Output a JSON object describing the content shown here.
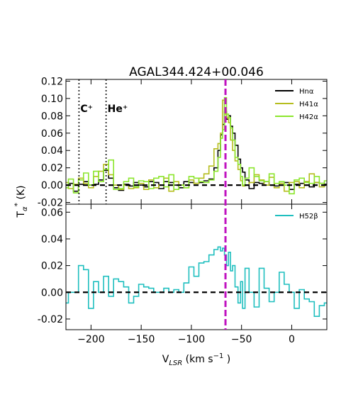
{
  "chart_data": [
    {
      "type": "line",
      "panel": "top",
      "title": "AGAL344.424+00.046",
      "ylabel": "T_a* (K)",
      "xlim": [
        -225,
        35
      ],
      "ylim": [
        -0.022,
        0.122
      ],
      "yticks": [
        "-0.02",
        "0.00",
        "0.02",
        "0.04",
        "0.06",
        "0.08",
        "0.10",
        "0.12"
      ],
      "legend_position": "top-right",
      "reference_lines": {
        "vlsr": -66,
        "markers": [
          {
            "label": "C⁺",
            "x": -212
          },
          {
            "label": "He⁺",
            "x": -185
          }
        ],
        "zero": 0
      },
      "series": [
        {
          "name": "Hnα",
          "color": "#000000",
          "x": [
            -225,
            -220,
            -215,
            -210,
            -205,
            -200,
            -195,
            -190,
            -185,
            -180,
            -175,
            -170,
            -165,
            -160,
            -155,
            -150,
            -145,
            -140,
            -135,
            -130,
            -125,
            -120,
            -115,
            -110,
            -105,
            -100,
            -95,
            -90,
            -85,
            -80,
            -75,
            -72,
            -70,
            -68,
            -66,
            -64,
            -62,
            -60,
            -58,
            -55,
            -52,
            -50,
            -48,
            -45,
            -40,
            -35,
            -30,
            -25,
            -20,
            -15,
            -10,
            -5,
            0,
            5,
            10,
            15,
            20,
            25,
            30,
            35
          ],
          "y": [
            0.0,
            0.002,
            -0.007,
            0.001,
            0.004,
            0.0,
            0.001,
            0.006,
            0.017,
            0.008,
            -0.003,
            -0.006,
            0.001,
            -0.001,
            0.003,
            0.0,
            -0.002,
            0.004,
            0.003,
            -0.004,
            0.004,
            0.003,
            0.0,
            -0.003,
            0.004,
            0.003,
            0.002,
            0.003,
            0.005,
            0.007,
            0.02,
            0.04,
            0.058,
            0.07,
            0.085,
            0.076,
            0.08,
            0.068,
            0.06,
            0.046,
            0.03,
            0.02,
            0.015,
            0.006,
            -0.004,
            0.003,
            0.002,
            0.004,
            0.0,
            -0.001,
            0.002,
            0.003,
            -0.005,
            0.001,
            0.002,
            0.004,
            -0.002,
            0.003,
            0.002,
            0.001
          ]
        },
        {
          "name": "H41α",
          "color": "#b5bd1e",
          "x": [
            -225,
            -220,
            -215,
            -210,
            -205,
            -200,
            -195,
            -190,
            -185,
            -180,
            -175,
            -170,
            -165,
            -160,
            -155,
            -150,
            -145,
            -140,
            -135,
            -130,
            -125,
            -120,
            -115,
            -110,
            -105,
            -100,
            -95,
            -90,
            -85,
            -80,
            -75,
            -72,
            -70,
            -68,
            -66,
            -64,
            -62,
            -60,
            -58,
            -55,
            -52,
            -50,
            -48,
            -45,
            -40,
            -35,
            -30,
            -25,
            -20,
            -15,
            -10,
            -5,
            0,
            5,
            10,
            15,
            20,
            25,
            30,
            35
          ],
          "y": [
            0.003,
            -0.004,
            0.001,
            0.008,
            0.002,
            -0.003,
            0.01,
            0.016,
            0.024,
            0.012,
            0.0,
            -0.005,
            0.0,
            -0.004,
            -0.003,
            0.002,
            -0.005,
            0.006,
            -0.003,
            0.0,
            0.008,
            -0.007,
            0.004,
            0.0,
            -0.003,
            0.006,
            0.002,
            0.008,
            0.013,
            0.022,
            0.042,
            0.048,
            0.06,
            0.098,
            0.082,
            0.078,
            0.072,
            0.052,
            0.04,
            0.028,
            0.018,
            0.005,
            -0.001,
            0.0,
            0.003,
            0.012,
            0.006,
            0.0,
            0.009,
            -0.003,
            0.002,
            -0.007,
            0.003,
            0.004,
            -0.003,
            0.004,
            0.013,
            0.003,
            -0.002,
            0.0
          ]
        },
        {
          "name": "H42α",
          "color": "#8ce62e",
          "x": [
            -225,
            -220,
            -215,
            -210,
            -205,
            -200,
            -195,
            -190,
            -185,
            -180,
            -175,
            -170,
            -165,
            -160,
            -155,
            -150,
            -145,
            -140,
            -135,
            -130,
            -125,
            -120,
            -115,
            -110,
            -105,
            -100,
            -95,
            -90,
            -85,
            -80,
            -75,
            -72,
            -70,
            -68,
            -66,
            -64,
            -62,
            -60,
            -58,
            -55,
            -52,
            -50,
            -48,
            -45,
            -40,
            -35,
            -30,
            -25,
            -20,
            -15,
            -10,
            -5,
            0,
            5,
            10,
            15,
            20,
            25,
            30,
            35
          ],
          "y": [
            -0.003,
            0.007,
            -0.009,
            0.006,
            0.014,
            0.0,
            0.016,
            0.004,
            0.018,
            0.029,
            -0.005,
            -0.004,
            0.004,
            0.008,
            -0.002,
            0.005,
            0.004,
            -0.004,
            0.008,
            0.01,
            -0.002,
            0.012,
            -0.005,
            0.0,
            -0.003,
            0.01,
            0.008,
            0.004,
            0.003,
            0.006,
            0.016,
            0.032,
            0.054,
            0.064,
            0.101,
            0.082,
            0.078,
            0.066,
            0.052,
            0.032,
            0.024,
            0.01,
            0.0,
            0.008,
            0.02,
            0.01,
            0.005,
            0.004,
            0.013,
            0.002,
            0.004,
            0.0,
            -0.01,
            0.006,
            0.008,
            0.003,
            0.002,
            0.01,
            0.002,
            0.005
          ]
        }
      ]
    },
    {
      "type": "line",
      "panel": "bottom",
      "xlabel": "V_LSR (km s⁻¹)",
      "xlim": [
        -225,
        35
      ],
      "xticks": [
        "−200",
        "−150",
        "−100",
        "−50",
        "0"
      ],
      "xtick_values": [
        -200,
        -150,
        -100,
        -50,
        0
      ],
      "ylim": [
        -0.028,
        0.066
      ],
      "yticks": [
        "-0.02",
        "0.00",
        "0.02",
        "0.04",
        "0.06"
      ],
      "legend_position": "top-right",
      "reference_lines": {
        "vlsr": -66,
        "zero": 0
      },
      "series": [
        {
          "name": "H52β",
          "color": "#1fbfbf",
          "x": [
            -225,
            -220,
            -215,
            -210,
            -205,
            -200,
            -195,
            -190,
            -185,
            -180,
            -175,
            -170,
            -165,
            -160,
            -155,
            -150,
            -145,
            -140,
            -135,
            -130,
            -125,
            -120,
            -115,
            -110,
            -105,
            -100,
            -95,
            -90,
            -85,
            -80,
            -75,
            -72,
            -70,
            -68,
            -66,
            -64,
            -62,
            -60,
            -58,
            -55,
            -52,
            -50,
            -48,
            -45,
            -40,
            -35,
            -30,
            -25,
            -20,
            -15,
            -10,
            -5,
            0,
            5,
            10,
            15,
            20,
            25,
            30,
            35
          ],
          "y": [
            -0.008,
            0.0,
            0.0,
            0.02,
            0.017,
            -0.012,
            0.008,
            0.0,
            0.012,
            -0.003,
            0.01,
            0.008,
            0.004,
            -0.008,
            -0.003,
            0.006,
            0.004,
            0.003,
            0.0,
            0.0,
            0.003,
            0.0,
            0.002,
            0.0,
            0.007,
            0.019,
            0.012,
            0.022,
            0.023,
            0.028,
            0.032,
            0.034,
            0.031,
            0.033,
            0.028,
            0.02,
            0.03,
            0.016,
            0.02,
            0.004,
            -0.008,
            0.008,
            -0.012,
            0.018,
            0.0,
            -0.011,
            0.018,
            0.003,
            -0.007,
            0.0,
            0.015,
            0.006,
            0.0,
            -0.012,
            0.002,
            -0.005,
            -0.007,
            -0.018,
            -0.01,
            -0.008
          ]
        }
      ]
    }
  ]
}
